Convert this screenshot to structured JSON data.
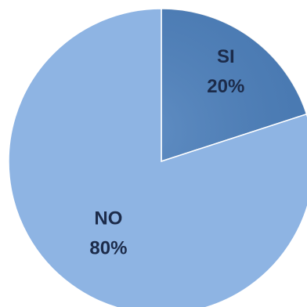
{
  "chart_data": {
    "type": "pie",
    "categories": [
      "SI",
      "NO"
    ],
    "values": [
      20,
      80
    ],
    "value_labels": [
      "20%",
      "80%"
    ],
    "colors": [
      "#4a7ebb",
      "#8eb4e3"
    ]
  }
}
